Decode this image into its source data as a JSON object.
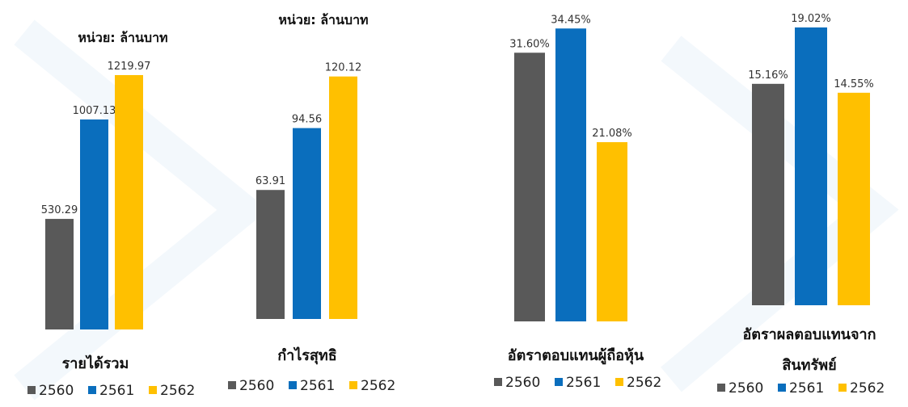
{
  "colors": {
    "2560": "#595959",
    "2561": "#0a6ebd",
    "2562": "#ffc000"
  },
  "chart_data": [
    {
      "type": "bar",
      "unit": "หน่วย:  ล้านบาท",
      "title_lines": [
        "รายได้รวม"
      ],
      "categories": [
        "2560",
        "2561",
        "2562"
      ],
      "values": [
        530.29,
        1007.13,
        1219.97
      ],
      "labels": [
        "530.29",
        "1007.13",
        "1219.97"
      ],
      "ylim": [
        0,
        1580
      ]
    },
    {
      "type": "bar",
      "unit": "หน่วย:  ล้านบาท",
      "title_lines": [
        "กำไรสุทธิ"
      ],
      "categories": [
        "2560",
        "2561",
        "2562"
      ],
      "values": [
        63.91,
        94.56,
        120.12
      ],
      "labels": [
        "63.91",
        "94.56",
        "120.12"
      ],
      "ylim": [
        0,
        158
      ]
    },
    {
      "type": "bar",
      "unit": "",
      "title_lines": [
        "อัตราตอบแทนผู้ถือหุ้น"
      ],
      "categories": [
        "2560",
        "2561",
        "2562"
      ],
      "values": [
        31.6,
        34.45,
        21.08
      ],
      "labels": [
        "31.60%",
        "34.45%",
        "21.08%"
      ],
      "ylim": [
        0,
        37.8
      ]
    },
    {
      "type": "bar",
      "unit": "",
      "title_lines": [
        "อัตราผลตอบแทนจาก",
        "สินทรัพย์"
      ],
      "categories": [
        "2560",
        "2561",
        "2562"
      ],
      "values": [
        15.16,
        19.02,
        14.55
      ],
      "labels": [
        "15.16%",
        "19.02%",
        "14.55%"
      ],
      "ylim": [
        0,
        20.9
      ]
    }
  ]
}
